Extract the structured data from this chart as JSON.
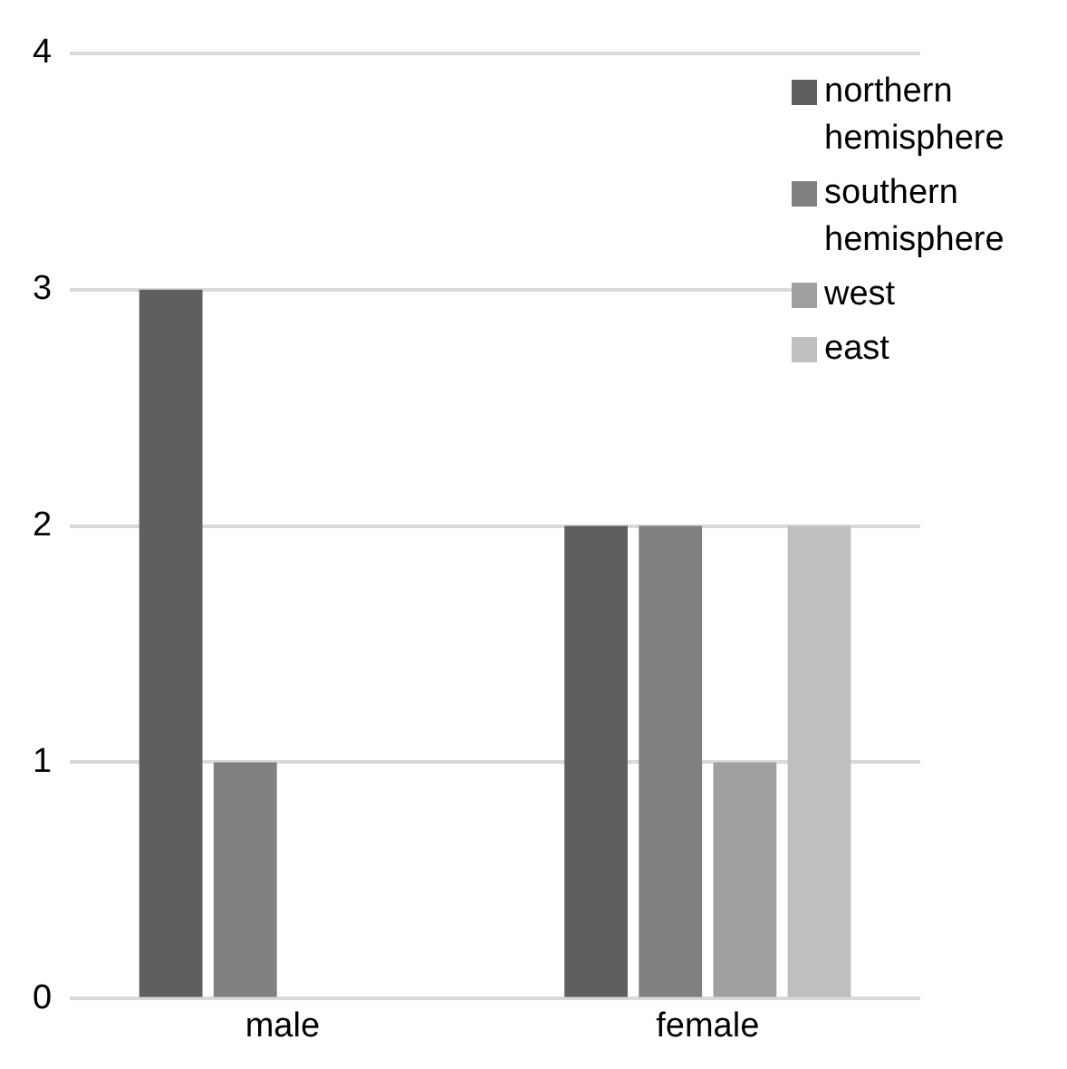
{
  "chart_data": {
    "type": "bar",
    "categories": [
      "male",
      "female"
    ],
    "series": [
      {
        "name": "northern hemisphere",
        "color": "#5f5f5f",
        "values": [
          3,
          2
        ]
      },
      {
        "name": "southern hemisphere",
        "color": "#808080",
        "values": [
          1,
          2
        ]
      },
      {
        "name": "west",
        "color": "#a0a0a0",
        "values": [
          0,
          1
        ]
      },
      {
        "name": "east",
        "color": "#bfbfbf",
        "values": [
          0,
          2
        ]
      }
    ],
    "ylim": [
      0,
      4
    ],
    "yticks": [
      0,
      1,
      2,
      3,
      4
    ],
    "grid": "y",
    "legend": "top right"
  }
}
